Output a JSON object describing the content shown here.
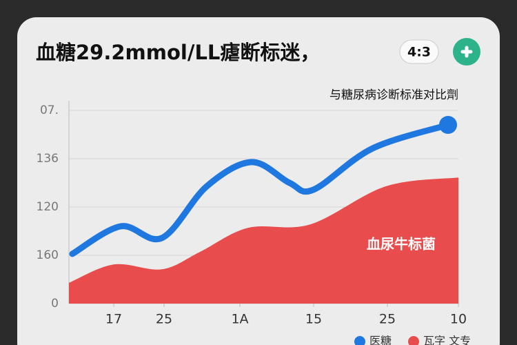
{
  "chart_data": {
    "type": "line-area",
    "title": "血糖29.2mmol/LL瘧断标迷，",
    "badge": "4:3",
    "subtitle": "与糖尿病诊断标准对比劑",
    "annotation": "血尿牛标菌",
    "xlim": [
      0,
      5.65
    ],
    "xticks": [
      {
        "value": 0.65,
        "label": "17"
      },
      {
        "value": 1.38,
        "label": "25"
      },
      {
        "value": 2.48,
        "label": "1A"
      },
      {
        "value": 3.55,
        "label": "15"
      },
      {
        "value": 4.62,
        "label": "25"
      },
      {
        "value": 5.65,
        "label": "10"
      }
    ],
    "ylim": [
      0,
      4.2
    ],
    "yticks": [
      0,
      {
        "value": 1,
        "label": "160"
      },
      {
        "value": 2,
        "label": "120"
      },
      {
        "value": 3,
        "label": "136"
      },
      {
        "value": 4,
        "label": "07."
      }
    ],
    "grid": true,
    "series": [
      {
        "name": "医糖",
        "color": "#1f77e0",
        "kind": "line",
        "x": [
          0.05,
          0.75,
          1.35,
          2.0,
          2.65,
          3.2,
          3.55,
          4.4,
          5.5
        ],
        "values": [
          1.03,
          1.6,
          1.36,
          2.43,
          2.93,
          2.5,
          2.36,
          3.21,
          3.7
        ]
      },
      {
        "name": "瓦字 文专",
        "color": "#e84c4c",
        "kind": "area",
        "x": [
          0,
          0.65,
          1.35,
          1.9,
          2.6,
          3.5,
          4.6,
          5.65
        ],
        "values": [
          0.43,
          0.81,
          0.71,
          1.07,
          1.57,
          1.64,
          2.43,
          2.61
        ]
      }
    ]
  }
}
